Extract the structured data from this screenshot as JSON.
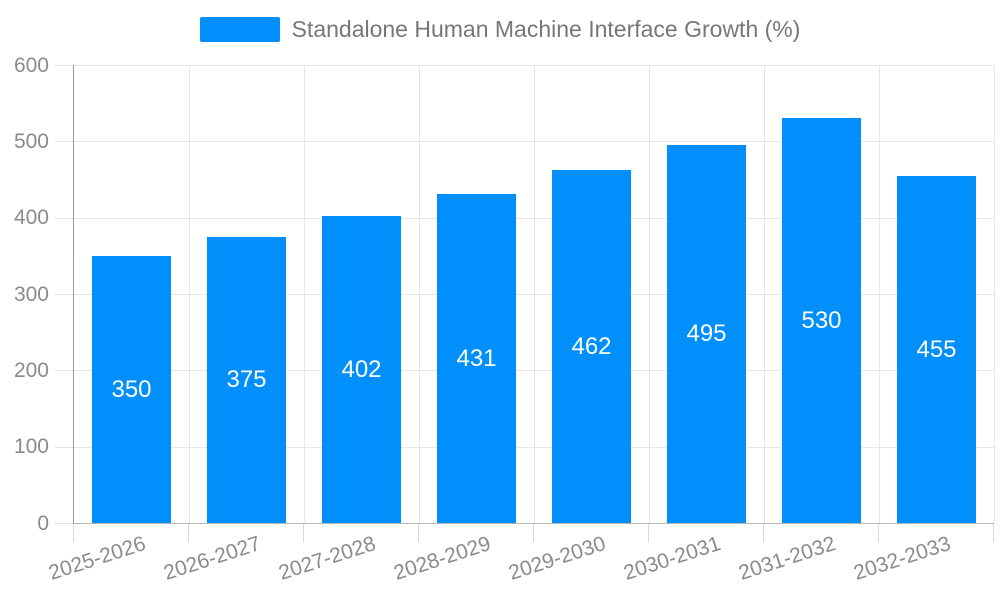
{
  "legend": {
    "label": "Standalone Human Machine Interface Growth (%)"
  },
  "chart_data": {
    "type": "bar",
    "title": "Standalone Human Machine Interface Growth (%)",
    "categories": [
      "2025-2026",
      "2026-2027",
      "2027-2028",
      "2028-2029",
      "2029-2030",
      "2030-2031",
      "2031-2032",
      "2032-2033"
    ],
    "values": [
      350,
      375,
      402,
      431,
      462,
      495,
      530,
      455
    ],
    "xlabel": "",
    "ylabel": "",
    "ylim": [
      0,
      600
    ],
    "yticks": [
      0,
      100,
      200,
      300,
      400,
      500,
      600
    ],
    "grid": true,
    "legend_position": "top-center",
    "bar_color": "#008FFB",
    "value_label_color": "#ffffff",
    "axis_label_color": "#8b8b8b"
  }
}
